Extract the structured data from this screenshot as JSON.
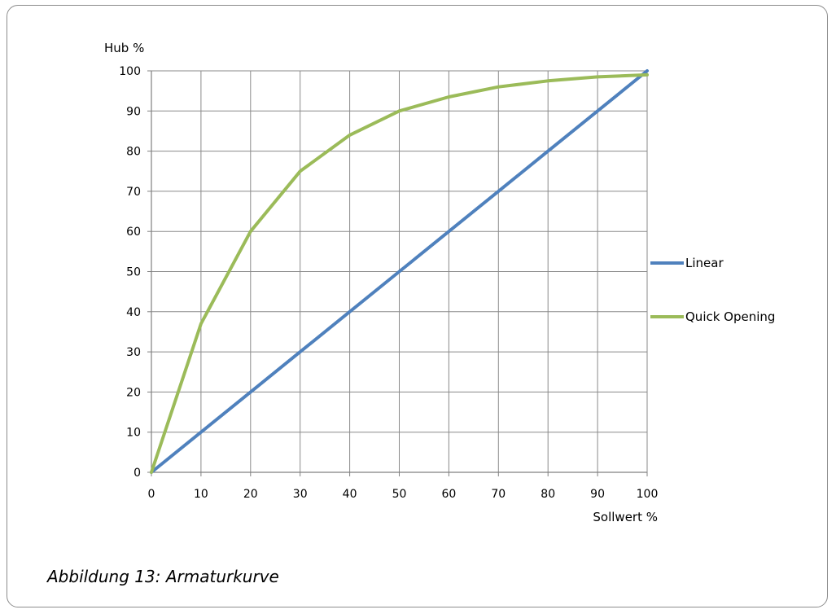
{
  "caption": "Abbildung 13: Armaturkurve",
  "chart_data": {
    "type": "line",
    "title": "",
    "xlabel": "Sollwert %",
    "ylabel": "Hub %",
    "xlim": [
      0,
      100
    ],
    "ylim": [
      0,
      100
    ],
    "x_ticks": [
      0,
      10,
      20,
      30,
      40,
      50,
      60,
      70,
      80,
      90,
      100
    ],
    "y_ticks": [
      0,
      10,
      20,
      30,
      40,
      50,
      60,
      70,
      80,
      90,
      100
    ],
    "grid": true,
    "legend_position": "right",
    "x": [
      0,
      10,
      20,
      30,
      40,
      50,
      60,
      70,
      80,
      90,
      100
    ],
    "series": [
      {
        "name": "Linear",
        "color": "#4f81bd",
        "values": [
          0,
          10,
          20,
          30,
          40,
          50,
          60,
          70,
          80,
          90,
          100
        ]
      },
      {
        "name": "Quick Opening",
        "color": "#9bbb59",
        "values": [
          0,
          37,
          60,
          75,
          84,
          90,
          93.5,
          96,
          97.5,
          98.5,
          99
        ]
      }
    ]
  }
}
